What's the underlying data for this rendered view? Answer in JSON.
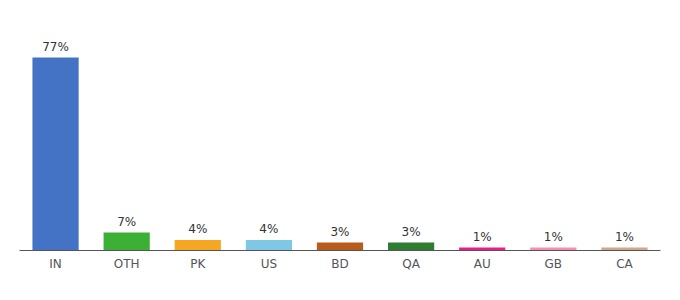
{
  "chart_data": {
    "type": "bar",
    "categories": [
      "IN",
      "OTH",
      "PK",
      "US",
      "BD",
      "QA",
      "AU",
      "GB",
      "CA"
    ],
    "values": [
      77,
      7,
      4,
      4,
      3,
      3,
      1,
      1,
      1
    ],
    "value_labels": [
      "77%",
      "7%",
      "4%",
      "4%",
      "3%",
      "3%",
      "1%",
      "1%",
      "1%"
    ],
    "colors": [
      "#4472c4",
      "#3cb034",
      "#f5a623",
      "#7ec8e3",
      "#b85c1e",
      "#2e7d32",
      "#e91e8c",
      "#f48fb1",
      "#d2a689"
    ],
    "ylim": [
      0,
      88
    ],
    "data_labels": true,
    "tick_labels": "x",
    "grid": false
  }
}
